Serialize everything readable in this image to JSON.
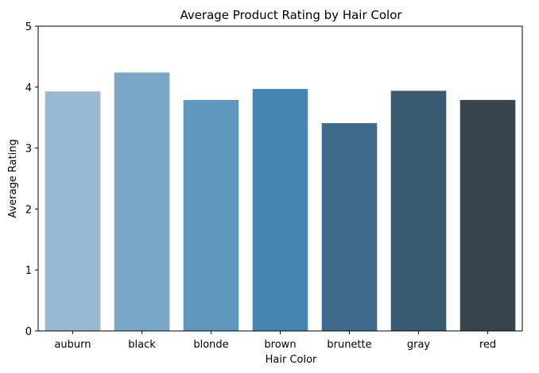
{
  "chart_data": {
    "type": "bar",
    "title": "Average Product Rating by Hair Color",
    "xlabel": "Hair Color",
    "ylabel": "Average Rating",
    "categories": [
      "auburn",
      "black",
      "blonde",
      "brown",
      "brunette",
      "gray",
      "red"
    ],
    "values": [
      3.93,
      4.24,
      3.79,
      3.97,
      3.41,
      3.94,
      3.79
    ],
    "colors": [
      "#97b9d3",
      "#7aa7c7",
      "#6097be",
      "#4785b4",
      "#3f6a8c",
      "#3a5a72",
      "#36454f"
    ],
    "ylim": [
      0,
      5
    ],
    "yticks": [
      0,
      1,
      2,
      3,
      4,
      5
    ],
    "grid": false,
    "legend": "none"
  }
}
